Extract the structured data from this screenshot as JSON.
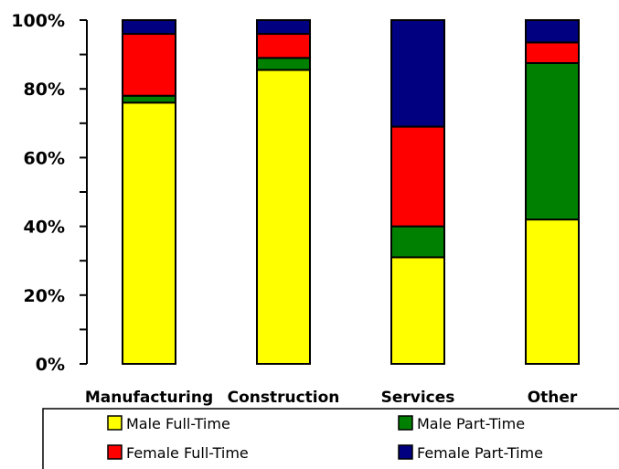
{
  "chart_data": {
    "type": "bar",
    "stacked": true,
    "categories": [
      "Manufacturing",
      "Construction",
      "Services",
      "Other"
    ],
    "series": [
      {
        "name": "Male Full-Time",
        "color": "#FFFF00",
        "values": [
          76,
          85.5,
          31,
          42
        ]
      },
      {
        "name": "Male Part-Time",
        "color": "#008000",
        "values": [
          2,
          3.5,
          9,
          45.5
        ]
      },
      {
        "name": "Female Full-Time",
        "color": "#FF0000",
        "values": [
          18,
          7,
          29,
          6
        ]
      },
      {
        "name": "Female Part-Time",
        "color": "#000080",
        "values": [
          4,
          4,
          31,
          6.5
        ]
      }
    ],
    "ylim": [
      0,
      100
    ],
    "yticks": [
      0,
      20,
      40,
      60,
      80,
      100
    ],
    "ytick_labels": [
      "0%",
      "20%",
      "40%",
      "60%",
      "80%",
      "100%"
    ],
    "title": "",
    "xlabel": "",
    "ylabel": "",
    "grid": false,
    "legend_position": "bottom"
  }
}
